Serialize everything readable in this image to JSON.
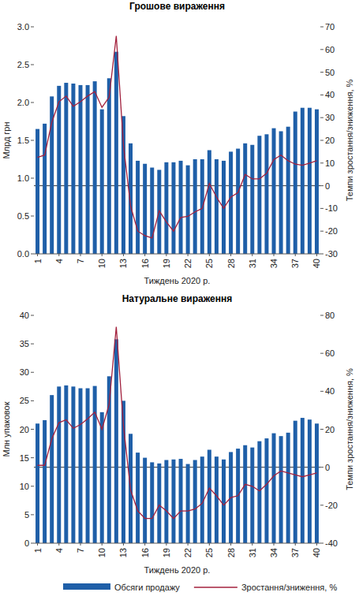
{
  "chart_data": [
    {
      "type": "bar",
      "title": "Грошове вираження",
      "xlabel": "Тиждень 2020 р.",
      "ylabel": "Млрд грн",
      "y2label": "Темпи зростання/зниження, %",
      "categories": [
        "1",
        null,
        null,
        "4",
        null,
        null,
        "7",
        null,
        null,
        "10",
        null,
        null,
        "13",
        null,
        null,
        "16",
        null,
        null,
        "19",
        null,
        null,
        "22",
        null,
        null,
        "25",
        null,
        null,
        "28",
        null,
        null,
        "31",
        null,
        null,
        "34",
        null,
        null,
        "37",
        null,
        null,
        "40"
      ],
      "ylim": [
        0,
        3
      ],
      "yticks": [
        {
          "value": 0,
          "label": "0.0"
        },
        0.5,
        {
          "value": 1,
          "label": "1.0"
        },
        1.5,
        {
          "value": 2,
          "label": "2.0"
        },
        2.5,
        {
          "value": 3,
          "label": "3.0"
        }
      ],
      "y2lim": [
        -30,
        70
      ],
      "y2ticks": [
        -30,
        -20,
        -10,
        0,
        10,
        20,
        30,
        40,
        50,
        60,
        70
      ],
      "grid": false,
      "series": [
        {
          "type": "bar",
          "color": "#1f5fa8",
          "values": [
            1.65,
            1.72,
            2.08,
            2.22,
            2.26,
            2.25,
            2.23,
            2.23,
            2.28,
            1.91,
            2.32,
            2.67,
            1.82,
            1.46,
            1.23,
            1.19,
            1.14,
            1.11,
            1.21,
            1.21,
            1.23,
            1.17,
            1.25,
            1.25,
            1.37,
            1.25,
            1.23,
            1.35,
            1.39,
            1.46,
            1.44,
            1.56,
            1.58,
            1.66,
            1.62,
            1.68,
            1.88,
            1.93,
            1.93,
            1.91
          ]
        },
        {
          "type": "line",
          "color": "#a3203c",
          "axis": "y2",
          "values": [
            12.5,
            13.5,
            28,
            37,
            39.5,
            35,
            37,
            39.5,
            41.5,
            34.5,
            39,
            66,
            18,
            -9,
            -20,
            -22,
            -23,
            -11,
            -16,
            -20,
            -14,
            -13.5,
            -11.5,
            -10,
            1,
            -5,
            -10,
            -5,
            -3,
            5,
            3,
            3,
            5.5,
            11.5,
            13.5,
            11,
            9.5,
            9,
            10,
            11
          ]
        }
      ]
    },
    {
      "type": "bar",
      "title": "Натуральне вираження",
      "xlabel": "Тиждень 2020 р.",
      "ylabel": "Млн упаковок",
      "y2label": "Темпи зростання/зниження, %",
      "categories": [
        "1",
        null,
        null,
        "4",
        null,
        null,
        "7",
        null,
        null,
        "10",
        null,
        null,
        "13",
        null,
        null,
        "16",
        null,
        null,
        "19",
        null,
        null,
        "22",
        null,
        null,
        "25",
        null,
        null,
        "28",
        null,
        null,
        "31",
        null,
        null,
        "34",
        null,
        null,
        "37",
        null,
        null,
        "40"
      ],
      "ylim": [
        0,
        40
      ],
      "yticks": [
        0,
        5,
        10,
        15,
        20,
        25,
        30,
        35,
        40
      ],
      "y2lim": [
        -40,
        80
      ],
      "y2ticks": [
        -40,
        -20,
        0,
        20,
        40,
        60,
        80
      ],
      "grid": false,
      "legend": "bottom",
      "series": [
        {
          "name": "Обсяги продажу",
          "type": "bar",
          "color": "#1f5fa8",
          "values": [
            21,
            21.6,
            26,
            27.5,
            27.7,
            27.5,
            27.2,
            27.2,
            27.6,
            23,
            29.3,
            35.8,
            25,
            19.2,
            15.9,
            15,
            14.2,
            14,
            14.6,
            14.7,
            14.8,
            13.9,
            14.6,
            15.2,
            16.4,
            15.2,
            14.7,
            16,
            16.6,
            17.2,
            16.8,
            17.9,
            18.4,
            19.3,
            18.8,
            19.4,
            21.5,
            22,
            21.7,
            21
          ]
        },
        {
          "name": "Зростання/зниження, %",
          "type": "line",
          "color": "#a3203c",
          "axis": "y2",
          "values": [
            1,
            1,
            15,
            23.5,
            25,
            20.5,
            22.5,
            25.5,
            29,
            20,
            33,
            74,
            22,
            -12,
            -23,
            -27,
            -27,
            -20,
            -23,
            -27,
            -23,
            -23,
            -22,
            -19,
            -11,
            -15,
            -20,
            -16,
            -15,
            -9,
            -10,
            -12.5,
            -9,
            -4.5,
            -2,
            -3,
            -4,
            -5,
            -4,
            -3
          ]
        }
      ]
    }
  ]
}
